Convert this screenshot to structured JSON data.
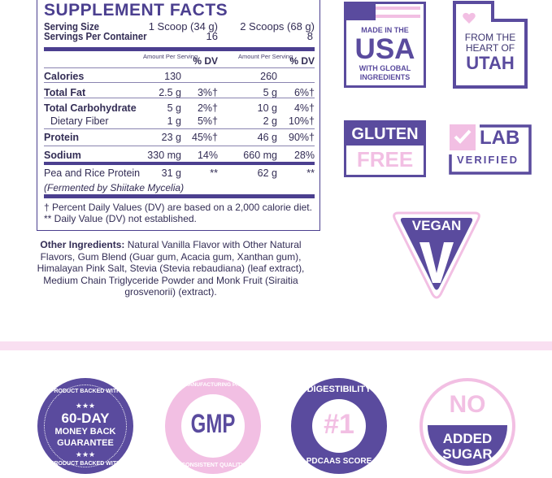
{
  "label": {
    "title": "SUPPLEMENT FACTS",
    "serving_size_label": "Serving Size",
    "servings_per_container_label": "Servings Per Container",
    "col1": {
      "serving": "1 Scoop (34 g)",
      "servings": "16"
    },
    "col2": {
      "serving": "2 Scoops (68 g)",
      "servings": "8"
    },
    "amount_header": "Amount Per Serving",
    "dv_header": "% DV",
    "rows": [
      {
        "name": "Calories",
        "a1": "130",
        "d1": "",
        "a2": "260",
        "d2": ""
      },
      {
        "name": "Total Fat",
        "a1": "2.5 g",
        "d1": "3%†",
        "a2": "5 g",
        "d2": "6%†"
      },
      {
        "name": "Total Carbohydrate",
        "a1": "5 g",
        "d1": "2%†",
        "a2": "10 g",
        "d2": "4%†"
      },
      {
        "name": "Dietary Fiber",
        "a1": "1 g",
        "d1": "5%†",
        "a2": "2 g",
        "d2": "10%†"
      },
      {
        "name": "Protein",
        "a1": "23 g",
        "d1": "45%†",
        "a2": "46 g",
        "d2": "90%†"
      },
      {
        "name": "Sodium",
        "a1": "330 mg",
        "d1": "14%",
        "a2": "660 mg",
        "d2": "28%"
      },
      {
        "name": "Pea and Rice Protein",
        "a1": "31 g",
        "d1": "**",
        "a2": "62 g",
        "d2": "**"
      }
    ],
    "pea_note": "(Fermented by Shiitake Mycelia)",
    "footnote1": "† Percent Daily Values (DV) are based on a 2,000 calorie diet.",
    "footnote2": "** Daily Value (DV) not established."
  },
  "other_ingredients": {
    "label": "Other Ingredients:",
    "text": " Natural Vanilla Flavor with Other Natural Flavors, Gum Blend (Guar gum, Acacia gum, Xanthan gum), Himalayan Pink Salt, Stevia (Stevia rebaudiana) (leaf extract), Medium Chain Triglyceride Powder and Monk Fruit (Siraitia grosvenorii) (extract)."
  },
  "badges": {
    "usa": {
      "top": "MADE IN THE",
      "big": "USA",
      "bottom1": "WITH GLOBAL",
      "bottom2": "INGREDIENTS"
    },
    "utah": {
      "line1": "FROM THE",
      "line2": "HEART OF",
      "big": "UTAH"
    },
    "gluten": {
      "top": "GLUTEN",
      "bottom": "FREE"
    },
    "lab": {
      "top": "LAB",
      "bottom": "VERIFIED"
    },
    "vegan": {
      "text": "VEGAN",
      "letter": "V"
    },
    "guarantee": {
      "ring": "PRODUCT BACKED WITH",
      "line1": "60-DAY",
      "line2": "MONEY BACK",
      "line3": "GUARANTEE",
      "stars": "★★★"
    },
    "gmp": {
      "ring_top": "GOOD MANUFACTURING PRACTICE",
      "ring_bottom": "CONSISTENT QUALITY",
      "big": "GMP"
    },
    "pdcaas": {
      "ring_top": "DIGESTIBILITY",
      "ring_bottom": "PDCAAS SCORE",
      "big": "#1"
    },
    "sugar": {
      "top": "NO",
      "line1": "ADDED",
      "line2": "SUGAR"
    }
  },
  "colors": {
    "purple": "#5a4b9e",
    "pink": "#f2bfe3",
    "band": "#f9dff1"
  }
}
